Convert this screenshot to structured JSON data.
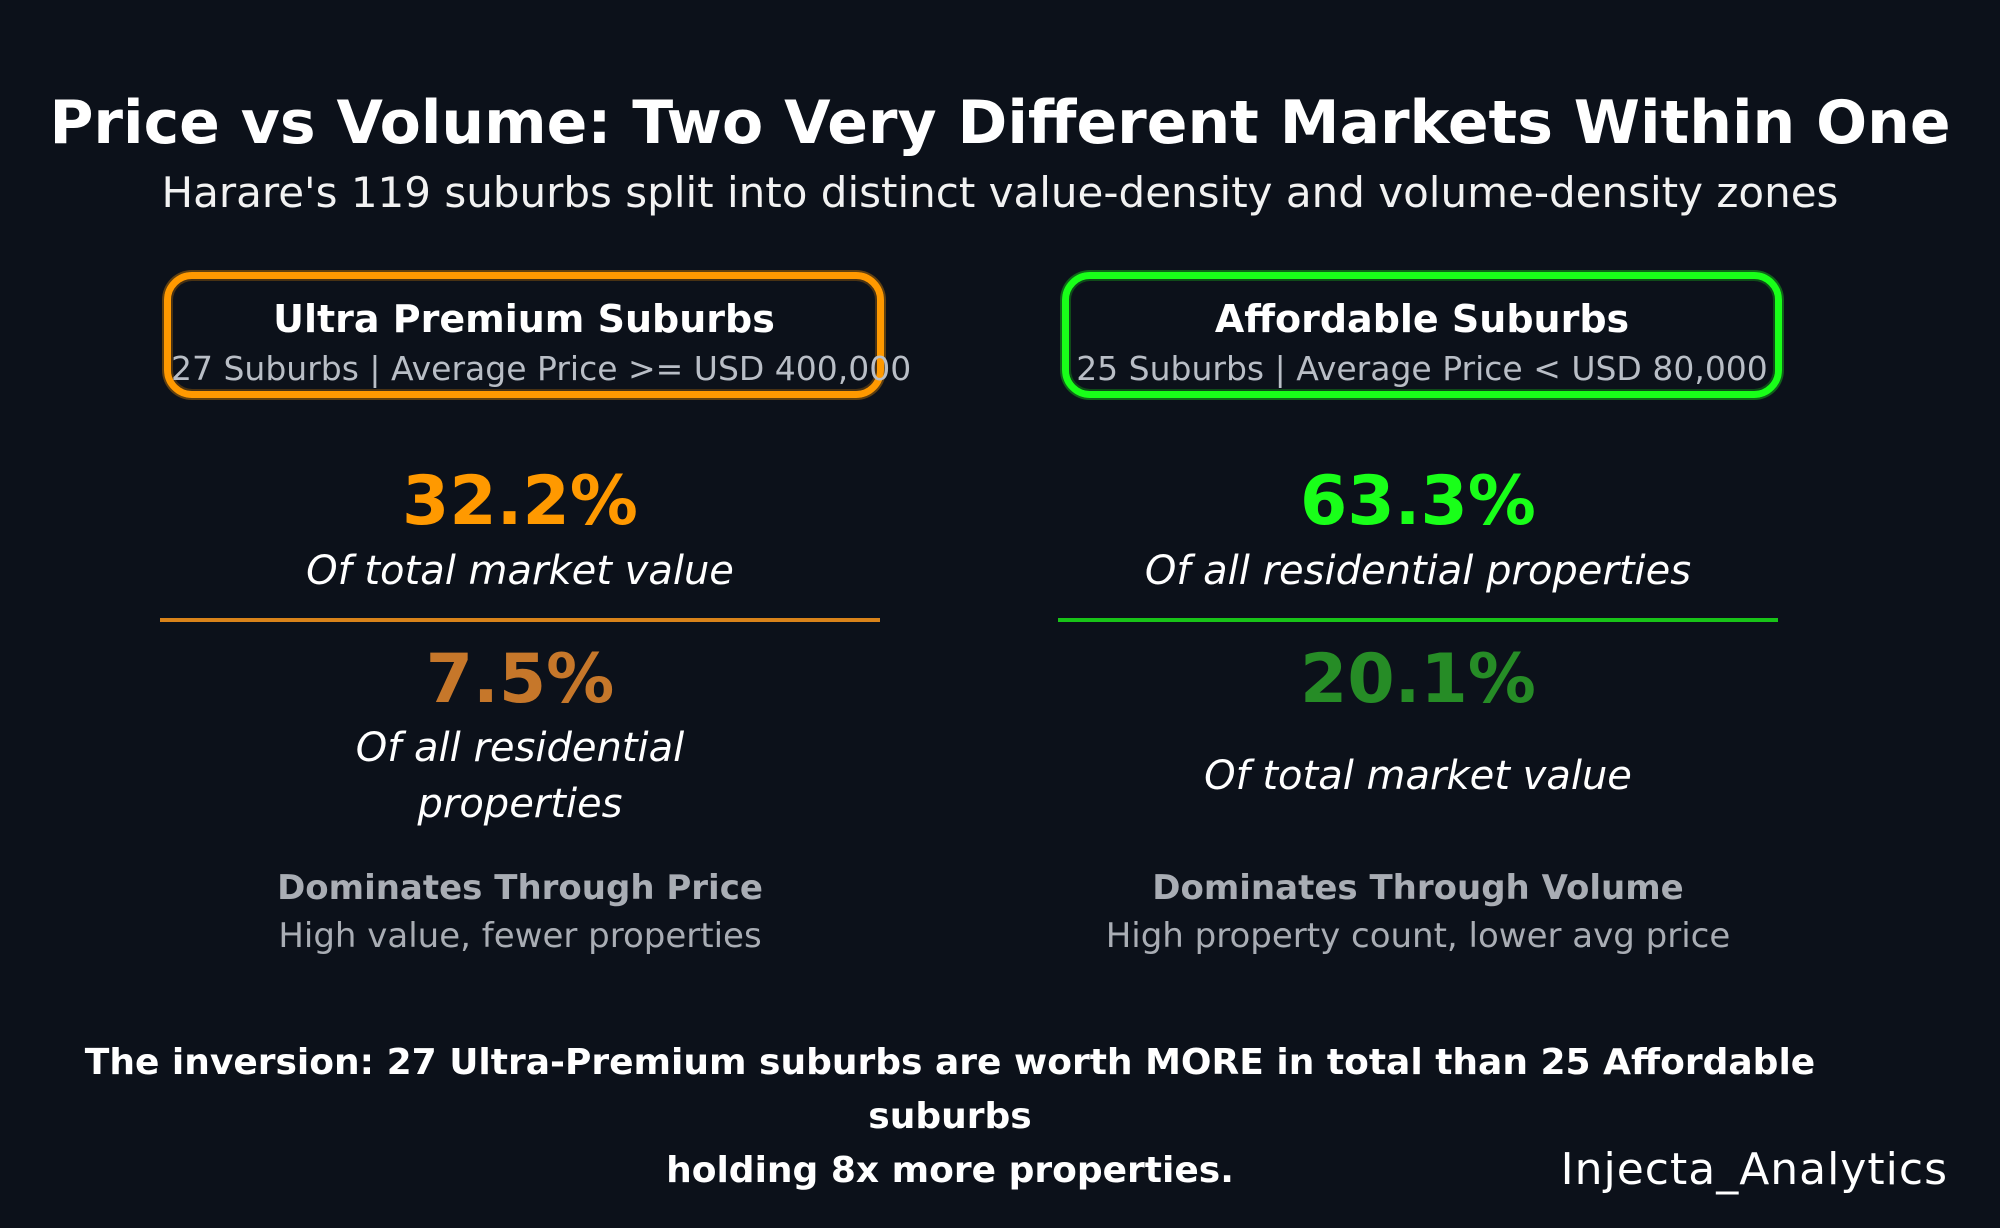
{
  "header": {
    "title": "Price vs Volume: Two Very Different Markets Within One",
    "subtitle": "Harare's 119 suburbs split into distinct value-density and volume-density zones"
  },
  "left": {
    "badge_title": "Ultra Premium Suburbs",
    "badge_sub": "27 Suburbs | Average Price >= USD 400,000",
    "primary_value": "32.2%",
    "primary_label": "Of total market value",
    "secondary_value": "7.5%",
    "secondary_label_line1": "Of all residential",
    "secondary_label_line2": "properties",
    "dominates_title": "Dominates Through Price",
    "dominates_sub": "High value, fewer properties",
    "accent_color": "#ff9900",
    "secondary_color": "#c6772a"
  },
  "right": {
    "badge_title": "Affordable Suburbs",
    "badge_sub": "25 Suburbs | Average Price < USD 80,000",
    "primary_value": "63.3%",
    "primary_label": "Of all residential properties",
    "secondary_value": "20.1%",
    "secondary_label": "Of total market value",
    "dominates_title": "Dominates Through Volume",
    "dominates_sub": "High property count, lower avg price",
    "accent_color": "#19ff19",
    "secondary_color": "#268c26"
  },
  "footer": {
    "line1": "The inversion: 27 Ultra-Premium suburbs are worth MORE in total than 25 Affordable suburbs",
    "line2": "holding 8x more properties."
  },
  "watermark": "Injecta_Analytics"
}
